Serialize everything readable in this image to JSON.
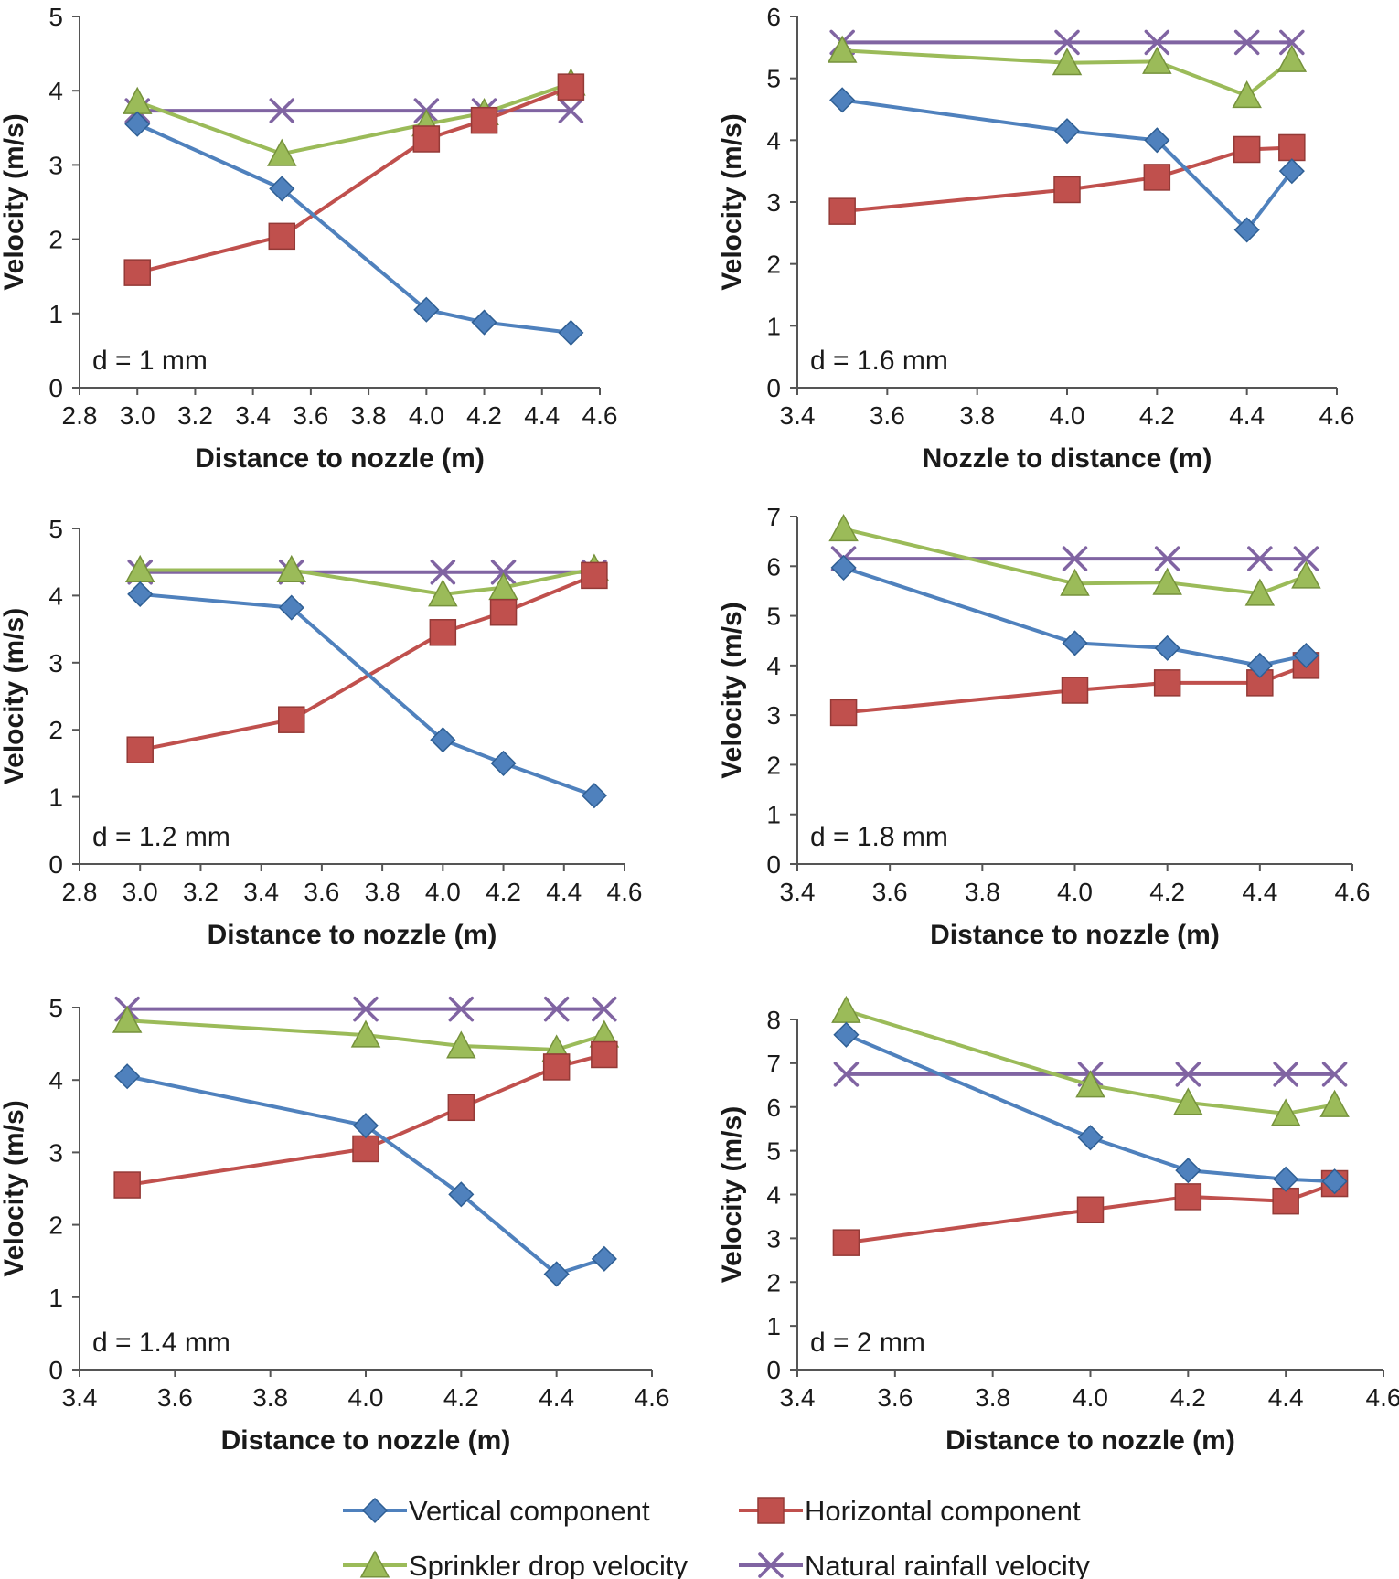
{
  "colors": {
    "vertical": "#4f81bd",
    "horizontal": "#c0504d",
    "sprinkler": "#9bbb59",
    "natural": "#8064a2",
    "axis": "#555555"
  },
  "legend": [
    {
      "key": "vertical",
      "label": "Vertical component",
      "marker": "diamond"
    },
    {
      "key": "horizontal",
      "label": "Horizontal component",
      "marker": "square"
    },
    {
      "key": "sprinkler",
      "label": "Sprinkler drop velocity",
      "marker": "triangle"
    },
    {
      "key": "natural",
      "label": "Natural rainfall velocity",
      "marker": "x"
    }
  ],
  "chart_data": [
    {
      "type": "line",
      "panel_label": "d = 1 mm",
      "xlabel": "Distance to nozzle (m)",
      "ylabel": "Velocity (m/s)",
      "xlim": [
        2.8,
        4.6
      ],
      "ylim": [
        0,
        5
      ],
      "xticks": [
        "2.8",
        "3.0",
        "3.2",
        "3.4",
        "3.6",
        "3.8",
        "4.0",
        "4.2",
        "4.4",
        "4.6"
      ],
      "yticks": [
        "0",
        "1",
        "2",
        "3",
        "4",
        "5"
      ],
      "series": [
        {
          "key": "vertical",
          "x": [
            3.0,
            3.5,
            4.0,
            4.2,
            4.5
          ],
          "y": [
            3.55,
            2.68,
            1.05,
            0.88,
            0.74
          ]
        },
        {
          "key": "horizontal",
          "x": [
            3.0,
            3.5,
            4.0,
            4.2,
            4.5
          ],
          "y": [
            1.55,
            2.04,
            3.35,
            3.6,
            4.05
          ]
        },
        {
          "key": "sprinkler",
          "x": [
            3.0,
            3.5,
            4.0,
            4.2,
            4.5
          ],
          "y": [
            3.85,
            3.15,
            3.55,
            3.7,
            4.1
          ]
        },
        {
          "key": "natural",
          "x": [
            3.0,
            3.5,
            4.0,
            4.2,
            4.5
          ],
          "y": [
            3.73,
            3.73,
            3.73,
            3.73,
            3.73
          ]
        }
      ]
    },
    {
      "type": "line",
      "panel_label": "d = 1.6 mm",
      "xlabel": "Nozzle to distance (m)",
      "ylabel": "Velocity (m/s)",
      "xlim": [
        3.4,
        4.6
      ],
      "ylim": [
        0,
        6
      ],
      "xticks": [
        "3.4",
        "3.6",
        "3.8",
        "4.0",
        "4.2",
        "4.4",
        "4.6"
      ],
      "yticks": [
        "0",
        "1",
        "2",
        "3",
        "4",
        "5",
        "6"
      ],
      "series": [
        {
          "key": "vertical",
          "x": [
            3.5,
            4.0,
            4.2,
            4.4,
            4.5
          ],
          "y": [
            4.65,
            4.15,
            4.0,
            2.55,
            3.5
          ]
        },
        {
          "key": "horizontal",
          "x": [
            3.5,
            4.0,
            4.2,
            4.4,
            4.5
          ],
          "y": [
            2.85,
            3.2,
            3.4,
            3.85,
            3.88
          ]
        },
        {
          "key": "sprinkler",
          "x": [
            3.5,
            4.0,
            4.2,
            4.4,
            4.5
          ],
          "y": [
            5.45,
            5.25,
            5.27,
            4.72,
            5.3
          ]
        },
        {
          "key": "natural",
          "x": [
            3.5,
            4.0,
            4.2,
            4.4,
            4.5
          ],
          "y": [
            5.58,
            5.58,
            5.58,
            5.58,
            5.58
          ]
        }
      ]
    },
    {
      "type": "line",
      "panel_label": "d = 1.2 mm",
      "xlabel": "Distance to nozzle (m)",
      "ylabel": "Velocity (m/s)",
      "xlim": [
        2.8,
        4.6
      ],
      "ylim": [
        0,
        5
      ],
      "xticks": [
        "2.8",
        "3.0",
        "3.2",
        "3.4",
        "3.6",
        "3.8",
        "4.0",
        "4.2",
        "4.4",
        "4.6"
      ],
      "yticks": [
        "0",
        "1",
        "2",
        "3",
        "4",
        "5"
      ],
      "series": [
        {
          "key": "vertical",
          "x": [
            3.0,
            3.5,
            4.0,
            4.2,
            4.5
          ],
          "y": [
            4.02,
            3.82,
            1.85,
            1.5,
            1.02
          ]
        },
        {
          "key": "horizontal",
          "x": [
            3.0,
            3.5,
            4.0,
            4.2,
            4.5
          ],
          "y": [
            1.7,
            2.15,
            3.45,
            3.75,
            4.3
          ]
        },
        {
          "key": "sprinkler",
          "x": [
            3.0,
            3.5,
            4.0,
            4.2,
            4.5
          ],
          "y": [
            4.38,
            4.38,
            4.02,
            4.12,
            4.4
          ]
        },
        {
          "key": "natural",
          "x": [
            3.0,
            3.5,
            4.0,
            4.2,
            4.5
          ],
          "y": [
            4.35,
            4.35,
            4.35,
            4.35,
            4.35
          ]
        }
      ]
    },
    {
      "type": "line",
      "panel_label": "d = 1.8 mm",
      "xlabel": "Distance to nozzle (m)",
      "ylabel": "Velocity (m/s)",
      "xlim": [
        3.4,
        4.6
      ],
      "ylim": [
        0,
        7
      ],
      "xticks": [
        "3.4",
        "3.6",
        "3.8",
        "4.0",
        "4.2",
        "4.4",
        "4.6"
      ],
      "yticks": [
        "0",
        "1",
        "2",
        "3",
        "4",
        "5",
        "6",
        "7"
      ],
      "series": [
        {
          "key": "vertical",
          "x": [
            3.5,
            4.0,
            4.2,
            4.4,
            4.5
          ],
          "y": [
            5.97,
            4.45,
            4.35,
            4.0,
            4.2
          ]
        },
        {
          "key": "horizontal",
          "x": [
            3.5,
            4.0,
            4.2,
            4.4,
            4.5
          ],
          "y": [
            3.05,
            3.5,
            3.65,
            3.65,
            4.0
          ]
        },
        {
          "key": "sprinkler",
          "x": [
            3.5,
            4.0,
            4.2,
            4.4,
            4.5
          ],
          "y": [
            6.75,
            5.65,
            5.67,
            5.45,
            5.8
          ]
        },
        {
          "key": "natural",
          "x": [
            3.5,
            4.0,
            4.2,
            4.4,
            4.5
          ],
          "y": [
            6.15,
            6.15,
            6.15,
            6.15,
            6.15
          ]
        }
      ]
    },
    {
      "type": "line",
      "panel_label": "d = 1.4 mm",
      "xlabel": "Distance to nozzle (m)",
      "ylabel": "Velocity (m/s)",
      "xlim": [
        3.4,
        4.6
      ],
      "ylim": [
        0,
        5
      ],
      "xticks": [
        "3.4",
        "3.6",
        "3.8",
        "4.0",
        "4.2",
        "4.4",
        "4.6"
      ],
      "yticks": [
        "0",
        "1",
        "2",
        "3",
        "4",
        "5"
      ],
      "series": [
        {
          "key": "vertical",
          "x": [
            3.5,
            4.0,
            4.2,
            4.4,
            4.5
          ],
          "y": [
            4.05,
            3.37,
            2.42,
            1.32,
            1.53
          ]
        },
        {
          "key": "horizontal",
          "x": [
            3.5,
            4.0,
            4.2,
            4.4,
            4.5
          ],
          "y": [
            2.55,
            3.05,
            3.62,
            4.18,
            4.35
          ]
        },
        {
          "key": "sprinkler",
          "x": [
            3.5,
            4.0,
            4.2,
            4.4,
            4.5
          ],
          "y": [
            4.82,
            4.62,
            4.47,
            4.42,
            4.62
          ]
        },
        {
          "key": "natural",
          "x": [
            3.5,
            4.0,
            4.2,
            4.4,
            4.5
          ],
          "y": [
            4.98,
            4.98,
            4.98,
            4.98,
            4.98
          ]
        }
      ]
    },
    {
      "type": "line",
      "panel_label": "d = 2 mm",
      "xlabel": "Distance to nozzle (m)",
      "ylabel": "Velocity (m/s)",
      "xlim": [
        3.4,
        4.6
      ],
      "ylim": [
        0,
        8
      ],
      "xticks": [
        "3.4",
        "3.6",
        "3.8",
        "4.0",
        "4.2",
        "4.4",
        "4.6"
      ],
      "yticks": [
        "0",
        "1",
        "2",
        "3",
        "4",
        "5",
        "6",
        "7",
        "8"
      ],
      "series": [
        {
          "key": "vertical",
          "x": [
            3.5,
            4.0,
            4.2,
            4.4,
            4.5
          ],
          "y": [
            7.65,
            5.3,
            4.55,
            4.35,
            4.3
          ]
        },
        {
          "key": "horizontal",
          "x": [
            3.5,
            4.0,
            4.2,
            4.4,
            4.5
          ],
          "y": [
            2.9,
            3.65,
            3.95,
            3.85,
            4.25
          ]
        },
        {
          "key": "sprinkler",
          "x": [
            3.5,
            4.0,
            4.2,
            4.4,
            4.5
          ],
          "y": [
            8.2,
            6.5,
            6.1,
            5.85,
            6.05
          ]
        },
        {
          "key": "natural",
          "x": [
            3.5,
            4.0,
            4.2,
            4.4,
            4.5
          ],
          "y": [
            6.75,
            6.75,
            6.75,
            6.75,
            6.75
          ]
        }
      ]
    }
  ]
}
